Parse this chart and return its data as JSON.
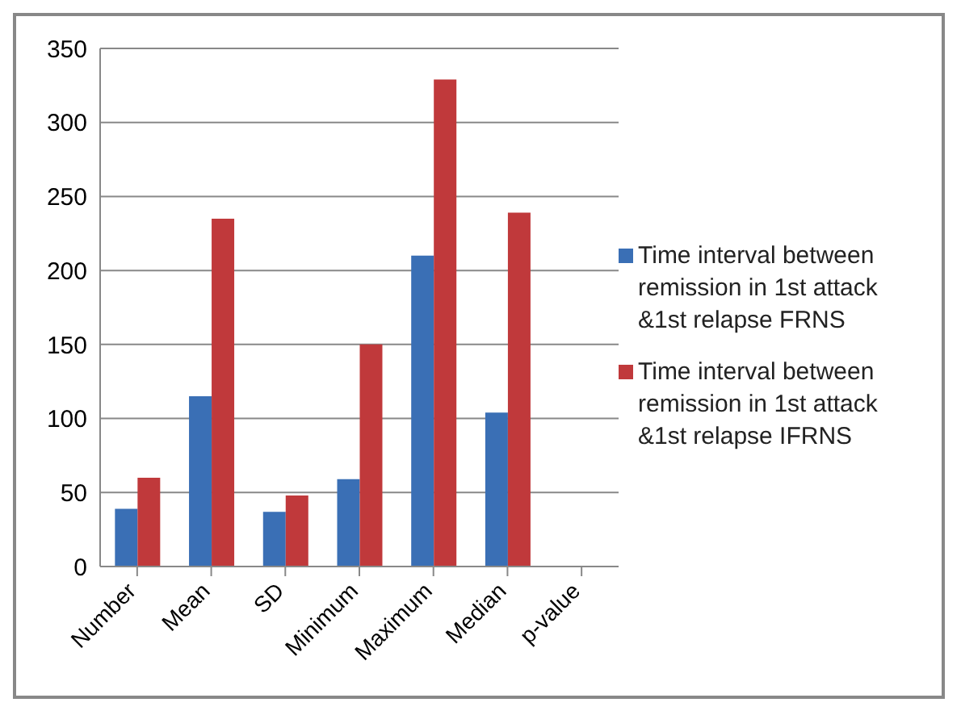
{
  "chart_data": {
    "type": "bar",
    "categories": [
      "Number",
      "Mean",
      "SD",
      "Minimum",
      "Maximum",
      "Median",
      "p-value"
    ],
    "series": [
      {
        "name": "Time interval between remission in 1st attack &1st relapse FRNS",
        "color": "#3a6fb5",
        "values": [
          39,
          115,
          37,
          59,
          210,
          104,
          null
        ]
      },
      {
        "name": "Time interval between remission in 1st attack &1st relapse IFRNS",
        "color": "#c0393b",
        "values": [
          60,
          235,
          48,
          150,
          329,
          239,
          null
        ]
      }
    ],
    "ylim": [
      0,
      350
    ],
    "yticks": [
      0,
      50,
      100,
      150,
      200,
      250,
      300,
      350
    ],
    "grid": "y",
    "legend": "right"
  }
}
